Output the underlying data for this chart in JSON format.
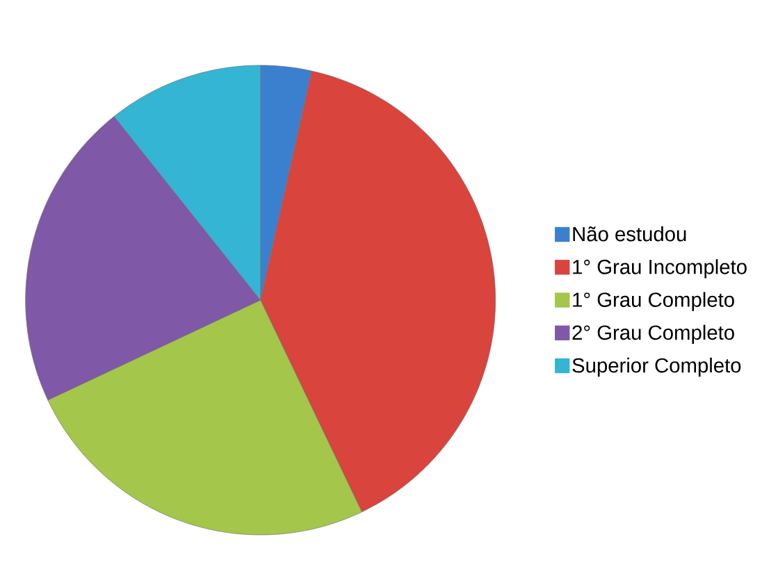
{
  "chart_data": {
    "type": "pie",
    "categories": [
      "Não estudou",
      "1° Grau Incompleto",
      "1° Grau Completo",
      "2° Grau Completo",
      "Superior Completo"
    ],
    "values": [
      3.5,
      39.4,
      25.1,
      21.3,
      10.7
    ],
    "colors": [
      "#3b7fcf",
      "#d9443c",
      "#a4c64a",
      "#7f58a8",
      "#33b5d3"
    ],
    "legend": "right"
  }
}
